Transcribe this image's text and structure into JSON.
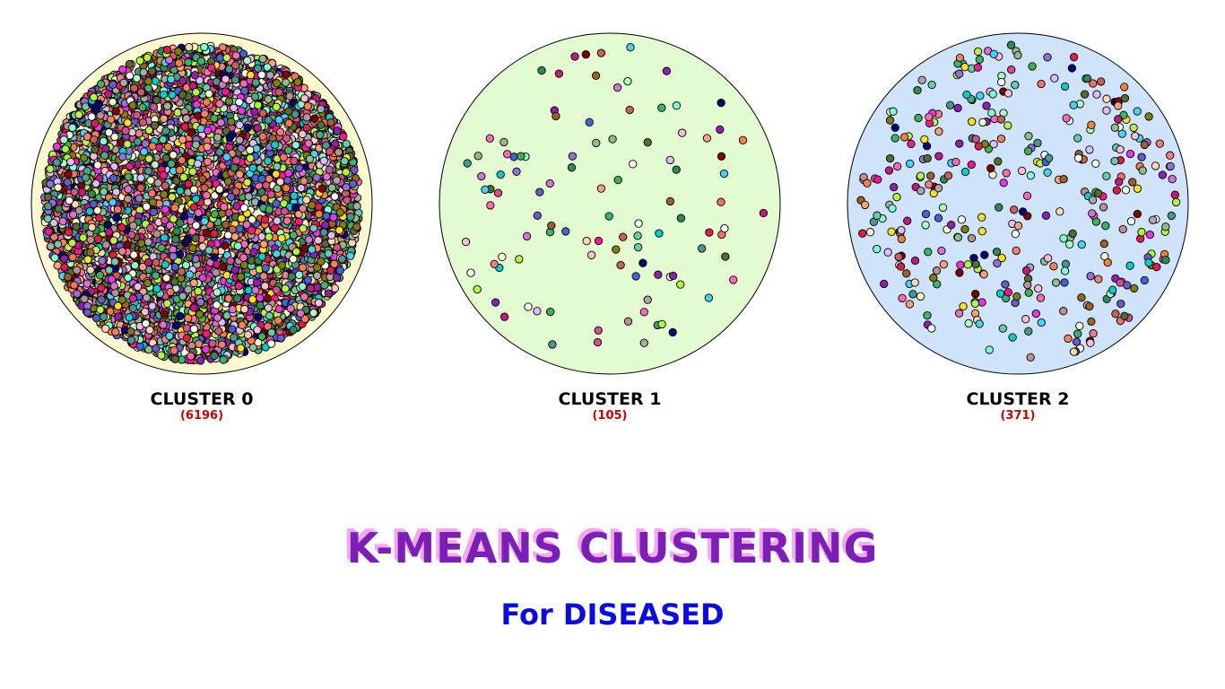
{
  "clusters": [
    {
      "label": "CLUSTER 0",
      "count": "(6196)",
      "points": 6196,
      "fill": "#fcf8d0"
    },
    {
      "label": "CLUSTER 1",
      "count": "(105)",
      "points": 105,
      "fill": "#e2fbd0"
    },
    {
      "label": "CLUSTER 2",
      "count": "(371)",
      "points": 371,
      "fill": "#cfe4fb"
    }
  ],
  "title": "K-MEANS CLUSTERING",
  "subtitle": "For DISEASED",
  "colors": {
    "title": "#7c1fb8",
    "title_shadow": "#f4a6ee",
    "subtitle": "#0a0ae6",
    "count": "#cc0000",
    "point_outline": "#000000"
  },
  "point_palette": [
    "#e6194b",
    "#ff6f61",
    "#f58231",
    "#ffe119",
    "#bfef45",
    "#3cb44b",
    "#42d4f4",
    "#4363d8",
    "#911eb4",
    "#f032e6",
    "#fabed4",
    "#469990",
    "#dcbeff",
    "#9a6324",
    "#fffac8",
    "#800000",
    "#aaffc3",
    "#808000",
    "#ffd8b1",
    "#000075",
    "#a9a9a9",
    "#ff69b4",
    "#8fbc8f",
    "#da70d6",
    "#cd5c5c",
    "#66cdaa",
    "#ffa07a",
    "#9370db",
    "#3cb371",
    "#ffffff",
    "#ff1493",
    "#00ced1",
    "#adff2f",
    "#c71585",
    "#6a5acd",
    "#f08080",
    "#2e8b57",
    "#bc8f8f",
    "#ff7f50",
    "#7fffd4",
    "#556b2f",
    "#da4b8f"
  ]
}
